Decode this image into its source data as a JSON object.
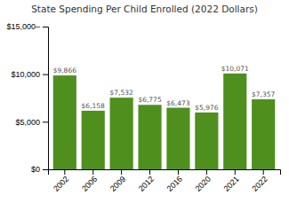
{
  "chart_data": {
    "type": "bar",
    "title": "State Spending Per Child Enrolled (2022 Dollars)",
    "categories": [
      "2002",
      "2006",
      "2009",
      "2012",
      "2016",
      "2020",
      "2021",
      "2022"
    ],
    "values": [
      9866,
      6158,
      7532,
      6775,
      6473,
      5976,
      10071,
      7357
    ],
    "value_labels": [
      "$9,866",
      "$6,158",
      "$7,532",
      "$6,775",
      "$6,473",
      "$5,976",
      "$10,071",
      "$7,357"
    ],
    "data_labels": true,
    "color": "#4e8f1e",
    "ylim": [
      0,
      15000
    ],
    "yticks": [
      {
        "value": 0,
        "label": "$0"
      },
      {
        "value": 5000,
        "label": "$5,000"
      },
      {
        "value": 10000,
        "label": "$10,000"
      },
      {
        "value": 15000,
        "label": "$15,000–"
      }
    ],
    "grid": false
  }
}
